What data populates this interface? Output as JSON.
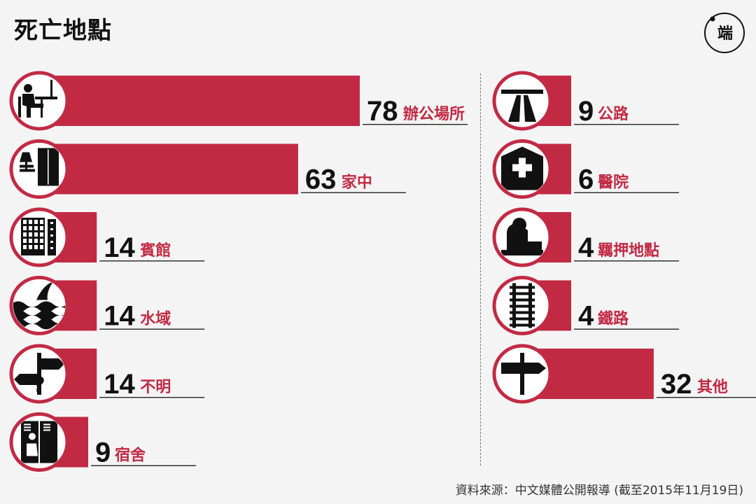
{
  "title": "死亡地點",
  "logo_text": "端",
  "source": "資料來源：中文媒體公開報導 (截至2015年11月19日)",
  "colors": {
    "bar": "#c22a44",
    "accent_text": "#c22a44",
    "icon_ring": "#c22a44",
    "icon_fill": "#111111",
    "icon_bg": "#ffffff",
    "background": "#f4f4f4"
  },
  "chart_data": {
    "type": "bar",
    "orientation": "horizontal",
    "value_max": 78,
    "categories": [
      "辦公場所",
      "家中",
      "賓館",
      "水域",
      "不明",
      "宿舍",
      "公路",
      "醫院",
      "羈押地點",
      "鐵路",
      "其他"
    ],
    "values": [
      78,
      63,
      14,
      14,
      14,
      9,
      9,
      6,
      4,
      4,
      32
    ],
    "icons": [
      "office-worker-icon",
      "home-icon",
      "hotel-icon",
      "water-icon",
      "unknown-signpost-icon",
      "dorm-icon",
      "highway-icon",
      "hospital-icon",
      "detention-icon",
      "railway-icon",
      "signpost-icon"
    ],
    "columns": [
      [
        0,
        1,
        2,
        3,
        4,
        5
      ],
      [
        6,
        7,
        8,
        9,
        10
      ]
    ]
  }
}
